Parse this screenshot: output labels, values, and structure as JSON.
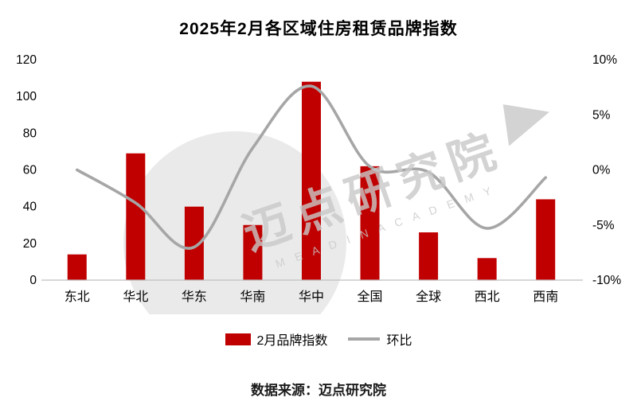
{
  "title": "2025年2月各区域住房租赁品牌指数",
  "source": "数据来源：迈点研究院",
  "watermark": {
    "text": "迈点研究院",
    "subtext": "M E A D I N   A C A D E M Y"
  },
  "legend": [
    {
      "label": "2月品牌指数",
      "type": "bar"
    },
    {
      "label": "环比",
      "type": "line"
    }
  ],
  "colors": {
    "bar": "#c00000",
    "line": "#a6a6a6",
    "axis": "#bfbfbf",
    "text": "#000000",
    "watermark": "#c9c9c9",
    "watermark_shape": "#d9d9d9"
  },
  "chart_data": {
    "type": "bar+line",
    "title": "2025年2月各区域住房租赁品牌指数",
    "categories": [
      "东北",
      "华北",
      "华东",
      "华南",
      "华中",
      "全国",
      "全球",
      "西北",
      "西南"
    ],
    "series": [
      {
        "name": "2月品牌指数",
        "type": "bar",
        "axis": "left",
        "values": [
          14,
          69,
          40,
          30,
          108,
          62,
          26,
          12,
          44
        ]
      },
      {
        "name": "环比",
        "type": "line",
        "axis": "right",
        "values": [
          0,
          -3,
          -7,
          2,
          7.6,
          0.3,
          -0.2,
          -5.3,
          -0.7
        ]
      }
    ],
    "left_axis": {
      "min": 0,
      "max": 120,
      "ticks": [
        0,
        20,
        40,
        60,
        80,
        100,
        120
      ],
      "tick_labels": [
        "0",
        "20",
        "40",
        "60",
        "80",
        "100",
        "120"
      ]
    },
    "right_axis": {
      "min": -10,
      "max": 10,
      "ticks": [
        -10,
        -5,
        0,
        5,
        10
      ],
      "tick_labels": [
        "-10%",
        "-5%",
        "0%",
        "5%",
        "10%"
      ]
    },
    "grid": false,
    "legend_position": "bottom",
    "xlabel": "",
    "ylabel": ""
  }
}
